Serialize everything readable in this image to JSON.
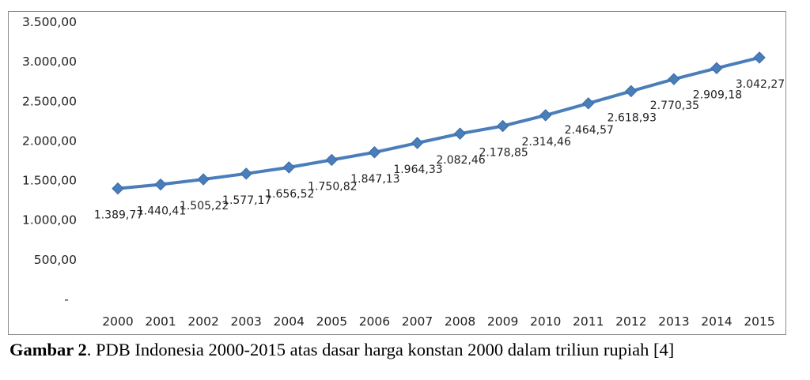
{
  "caption": {
    "label": "Gambar 2",
    "text": ". PDB Indonesia 2000-2015 atas dasar harga konstan 2000 dalam triliun rupiah [4]"
  },
  "chart_data": {
    "type": "line",
    "title": "",
    "xlabel": "",
    "ylabel": "",
    "categories": [
      "2000",
      "2001",
      "2002",
      "2003",
      "2004",
      "2005",
      "2006",
      "2007",
      "2008",
      "2009",
      "2010",
      "2011",
      "2012",
      "2013",
      "2014",
      "2015"
    ],
    "values": [
      1389.77,
      1440.41,
      1505.22,
      1577.17,
      1656.52,
      1750.82,
      1847.13,
      1964.33,
      2082.46,
      2178.85,
      2314.46,
      2464.57,
      2618.93,
      2770.35,
      2909.18,
      3042.27
    ],
    "data_labels": [
      "1.389,77",
      "1.440,41",
      "1.505,22",
      "1.577,17",
      "1.656,52",
      "1.750,82",
      "1.847,13",
      "1.964,33",
      "2.082,46",
      "2.178,85",
      "2.314,46",
      "2.464,57",
      "2.618,93",
      "2.770,35",
      "2.909,18",
      "3.042,27"
    ],
    "ylim": [
      0,
      3500
    ],
    "yticks": [
      0,
      500,
      1000,
      1500,
      2000,
      2500,
      3000,
      3500
    ],
    "ytick_labels": [
      "-",
      "500,00",
      "1.000,00",
      "1.500,00",
      "2.000,00",
      "2.500,00",
      "3.000,00",
      "3.500,00"
    ],
    "grid": false,
    "legend": "none",
    "line_color": "#4a7ebb",
    "marker": "diamond"
  }
}
